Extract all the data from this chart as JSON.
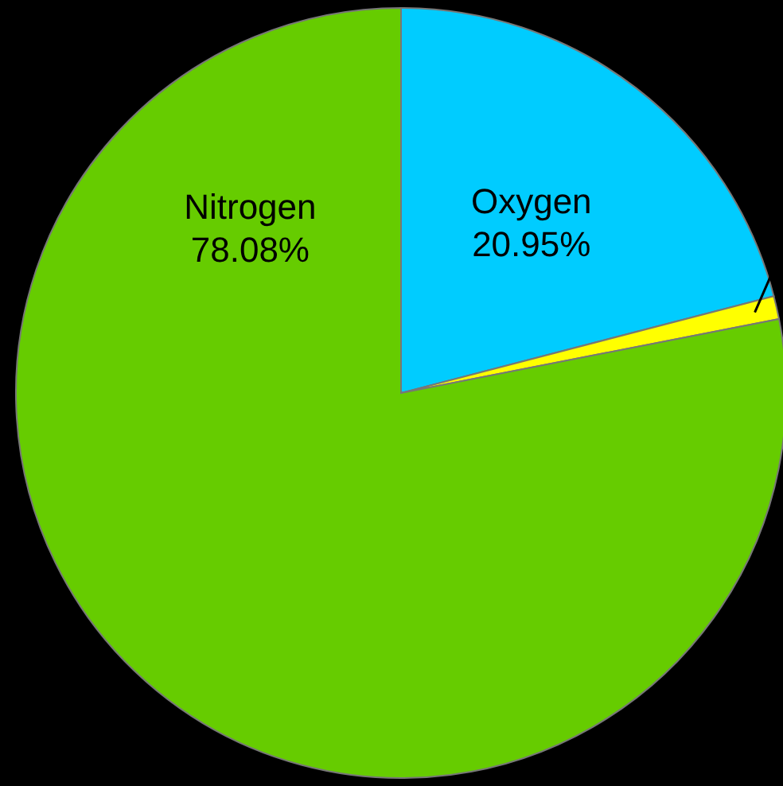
{
  "chart_data": {
    "type": "pie",
    "categories": [
      "Nitrogen",
      "Oxygen",
      null
    ],
    "values": [
      78.08,
      20.95,
      0.97
    ],
    "colors": [
      "#66cc00",
      "#00ccff",
      "#ffff00"
    ],
    "value_labels": [
      "78.08%",
      "20.95%",
      null
    ]
  }
}
